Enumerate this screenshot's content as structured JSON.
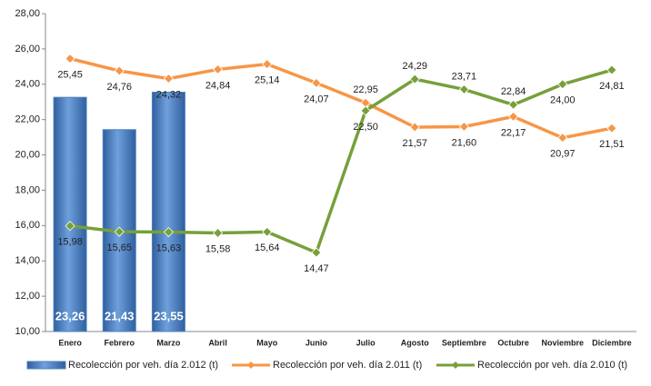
{
  "chart_data": {
    "type": "bar_line",
    "categories": [
      "Enero",
      "Febrero",
      "Marzo",
      "Abril",
      "Mayo",
      "Junio",
      "Julio",
      "Agosto",
      "Septiembre",
      "Octubre",
      "Noviembre",
      "Diciembre"
    ],
    "series": [
      {
        "name": "Recolección por veh. día 2.012 (t)",
        "type": "bar",
        "color": "#4f81bd",
        "values": [
          23.26,
          21.43,
          23.55,
          null,
          null,
          null,
          null,
          null,
          null,
          null,
          null,
          null
        ],
        "value_labels": [
          "23,26",
          "21,43",
          "23,55",
          null,
          null,
          null,
          null,
          null,
          null,
          null,
          null,
          null
        ]
      },
      {
        "name": "Recolección por veh. día 2.011 (t)",
        "type": "line",
        "color": "#f79646",
        "values": [
          25.45,
          24.76,
          24.32,
          24.84,
          25.14,
          24.07,
          22.95,
          21.57,
          21.6,
          22.17,
          20.97,
          21.51
        ],
        "value_labels": [
          "25,45",
          "24,76",
          "24,32",
          "24,84",
          "25,14",
          "24,07",
          "22,95",
          "21,57",
          "21,60",
          "22,17",
          "20,97",
          "21,51"
        ]
      },
      {
        "name": "Recolección por veh. día 2.010 (t)",
        "type": "line",
        "color": "#77a03a",
        "values": [
          15.98,
          15.65,
          15.63,
          15.58,
          15.64,
          14.47,
          22.5,
          24.29,
          23.71,
          22.84,
          24.0,
          24.81
        ],
        "value_labels": [
          "15,98",
          "15,65",
          "15,63",
          "15,58",
          "15,64",
          "14,47",
          "22,50",
          "24,29",
          "23,71",
          "22,84",
          "24,00",
          "24,81"
        ]
      }
    ],
    "ylim": [
      10,
      28
    ],
    "yticks": [
      {
        "value": 10,
        "label": "10,00"
      },
      {
        "value": 12,
        "label": "12,00"
      },
      {
        "value": 14,
        "label": "14,00"
      },
      {
        "value": 16,
        "label": "16,00"
      },
      {
        "value": 18,
        "label": "18,00"
      },
      {
        "value": 20,
        "label": "20,00"
      },
      {
        "value": 22,
        "label": "22,00"
      },
      {
        "value": 24,
        "label": "24,00"
      },
      {
        "value": 26,
        "label": "26,00"
      },
      {
        "value": 28,
        "label": "28,00"
      }
    ],
    "grid": false,
    "legend": "bottom"
  }
}
